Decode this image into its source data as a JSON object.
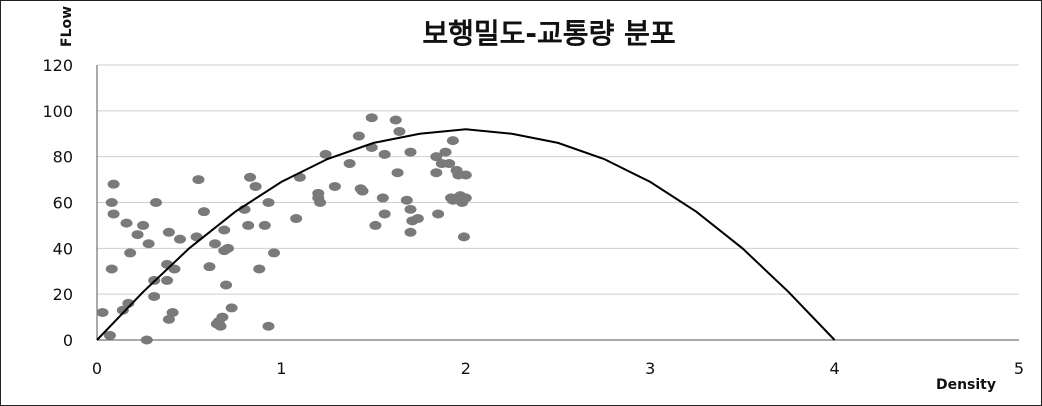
{
  "chart_data": {
    "type": "scatter",
    "title": "보행밀도-교통량 분포",
    "xlabel": "Density",
    "ylabel": "FLow",
    "xlim": [
      0,
      5
    ],
    "ylim": [
      0,
      120
    ],
    "x_ticks": [
      0,
      1,
      2,
      3,
      4,
      5
    ],
    "y_ticks": [
      0,
      20,
      40,
      60,
      80,
      100,
      120
    ],
    "grid": "horizontal",
    "legend": "none",
    "colors": {
      "points": "#7a7a7a",
      "curve": "#000000",
      "grid": "#cfcfcf"
    },
    "series": [
      {
        "type": "scatter",
        "points": [
          [
            0.03,
            12
          ],
          [
            0.07,
            2
          ],
          [
            0.09,
            68
          ],
          [
            0.08,
            60
          ],
          [
            0.09,
            55
          ],
          [
            0.08,
            31
          ],
          [
            0.14,
            13
          ],
          [
            0.16,
            51
          ],
          [
            0.17,
            16
          ],
          [
            0.18,
            38
          ],
          [
            0.22,
            46
          ],
          [
            0.25,
            50
          ],
          [
            0.27,
            0
          ],
          [
            0.28,
            42
          ],
          [
            0.31,
            19
          ],
          [
            0.31,
            26
          ],
          [
            0.32,
            60
          ],
          [
            0.38,
            26
          ],
          [
            0.38,
            33
          ],
          [
            0.39,
            47
          ],
          [
            0.39,
            9
          ],
          [
            0.41,
            12
          ],
          [
            0.42,
            31
          ],
          [
            0.45,
            44
          ],
          [
            0.54,
            45
          ],
          [
            0.55,
            70
          ],
          [
            0.58,
            56
          ],
          [
            0.61,
            32
          ],
          [
            0.64,
            42
          ],
          [
            0.65,
            7
          ],
          [
            0.66,
            8
          ],
          [
            0.67,
            6
          ],
          [
            0.68,
            10
          ],
          [
            0.69,
            48
          ],
          [
            0.69,
            39
          ],
          [
            0.7,
            24
          ],
          [
            0.71,
            40
          ],
          [
            0.73,
            14
          ],
          [
            0.8,
            57
          ],
          [
            0.82,
            50
          ],
          [
            0.83,
            71
          ],
          [
            0.86,
            67
          ],
          [
            0.88,
            31
          ],
          [
            0.91,
            50
          ],
          [
            0.93,
            60
          ],
          [
            0.93,
            6
          ],
          [
            0.96,
            38
          ],
          [
            1.08,
            53
          ],
          [
            1.1,
            71
          ],
          [
            1.2,
            64
          ],
          [
            1.2,
            62
          ],
          [
            1.21,
            60
          ],
          [
            1.24,
            81
          ],
          [
            1.29,
            67
          ],
          [
            1.37,
            77
          ],
          [
            1.42,
            89
          ],
          [
            1.43,
            66
          ],
          [
            1.44,
            65
          ],
          [
            1.49,
            97
          ],
          [
            1.49,
            84
          ],
          [
            1.51,
            50
          ],
          [
            1.55,
            62
          ],
          [
            1.56,
            55
          ],
          [
            1.56,
            81
          ],
          [
            1.62,
            96
          ],
          [
            1.63,
            73
          ],
          [
            1.64,
            91
          ],
          [
            1.68,
            61
          ],
          [
            1.7,
            82
          ],
          [
            1.7,
            57
          ],
          [
            1.7,
            47
          ],
          [
            1.71,
            52
          ],
          [
            1.74,
            53
          ],
          [
            1.84,
            80
          ],
          [
            1.84,
            73
          ],
          [
            1.85,
            55
          ],
          [
            1.87,
            77
          ],
          [
            1.89,
            82
          ],
          [
            1.91,
            77
          ],
          [
            1.92,
            62
          ],
          [
            1.93,
            87
          ],
          [
            1.93,
            61
          ],
          [
            1.95,
            74
          ],
          [
            1.96,
            72
          ],
          [
            1.97,
            63
          ],
          [
            1.98,
            60
          ],
          [
            1.99,
            45
          ],
          [
            2.0,
            72
          ],
          [
            2.0,
            62
          ]
        ]
      },
      {
        "type": "line",
        "note": "Greenshields parabola",
        "points": [
          [
            0,
            0
          ],
          [
            0.25,
            21
          ],
          [
            0.5,
            40
          ],
          [
            0.75,
            56
          ],
          [
            1,
            69
          ],
          [
            1.25,
            79
          ],
          [
            1.5,
            86
          ],
          [
            1.75,
            90
          ],
          [
            2,
            92
          ],
          [
            2.25,
            90
          ],
          [
            2.5,
            86
          ],
          [
            2.75,
            79
          ],
          [
            3,
            69
          ],
          [
            3.25,
            56
          ],
          [
            3.5,
            40
          ],
          [
            3.75,
            21
          ],
          [
            4,
            0
          ]
        ]
      }
    ]
  }
}
